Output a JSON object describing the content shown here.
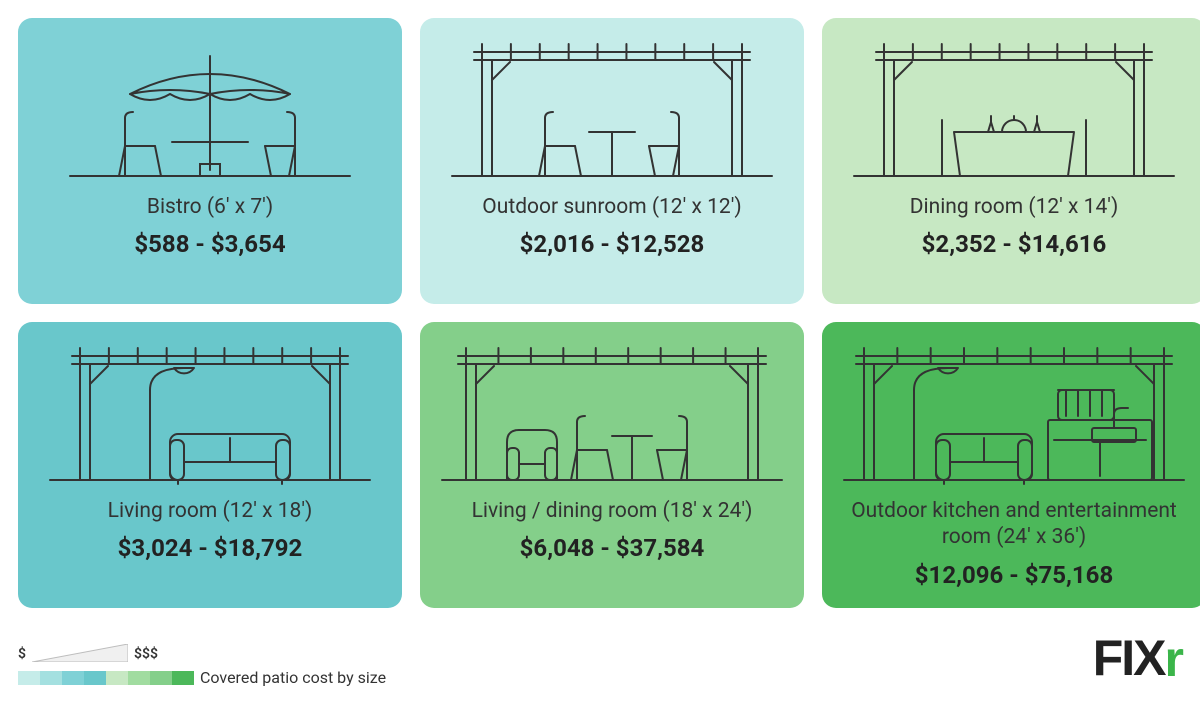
{
  "cards": [
    {
      "label": "Bistro (6' x 7')",
      "price": "$588 - $3,654",
      "bg": "#7fd1d6",
      "illustration": "bistro"
    },
    {
      "label": "Outdoor sunroom (12' x 12')",
      "price": "$2,016 - $12,528",
      "bg": "#c5ece9",
      "illustration": "sunroom"
    },
    {
      "label": "Dining room (12' x 14')",
      "price": "$2,352 - $14,616",
      "bg": "#c7e8c3",
      "illustration": "dining"
    },
    {
      "label": "Living room (12' x 18')",
      "price": "$3,024 - $18,792",
      "bg": "#69c7cb",
      "illustration": "living"
    },
    {
      "label": "Living / dining room (18' x 24')",
      "price": "$6,048 - $37,584",
      "bg": "#84cf8a",
      "illustration": "livingdining"
    },
    {
      "label": "Outdoor kitchen and entertainment room (24' x 36')",
      "price": "$12,096 - $75,168",
      "bg": "#4cb85a",
      "illustration": "kitchen"
    }
  ],
  "scale": {
    "low_label": "$",
    "high_label": "$$$",
    "colors": [
      "#c5ece9",
      "#a4e0e0",
      "#7fd1d6",
      "#69c7cb",
      "#c7e8c3",
      "#a1dca0",
      "#84cf8a",
      "#4cb85a"
    ],
    "wedge_fill": "#f0f0f0",
    "wedge_stroke": "#bdbdbd"
  },
  "caption": "Covered patio cost by size",
  "logo": {
    "text": "FIX",
    "accent": "r"
  },
  "stroke": "#333333",
  "stroke_width": 2
}
